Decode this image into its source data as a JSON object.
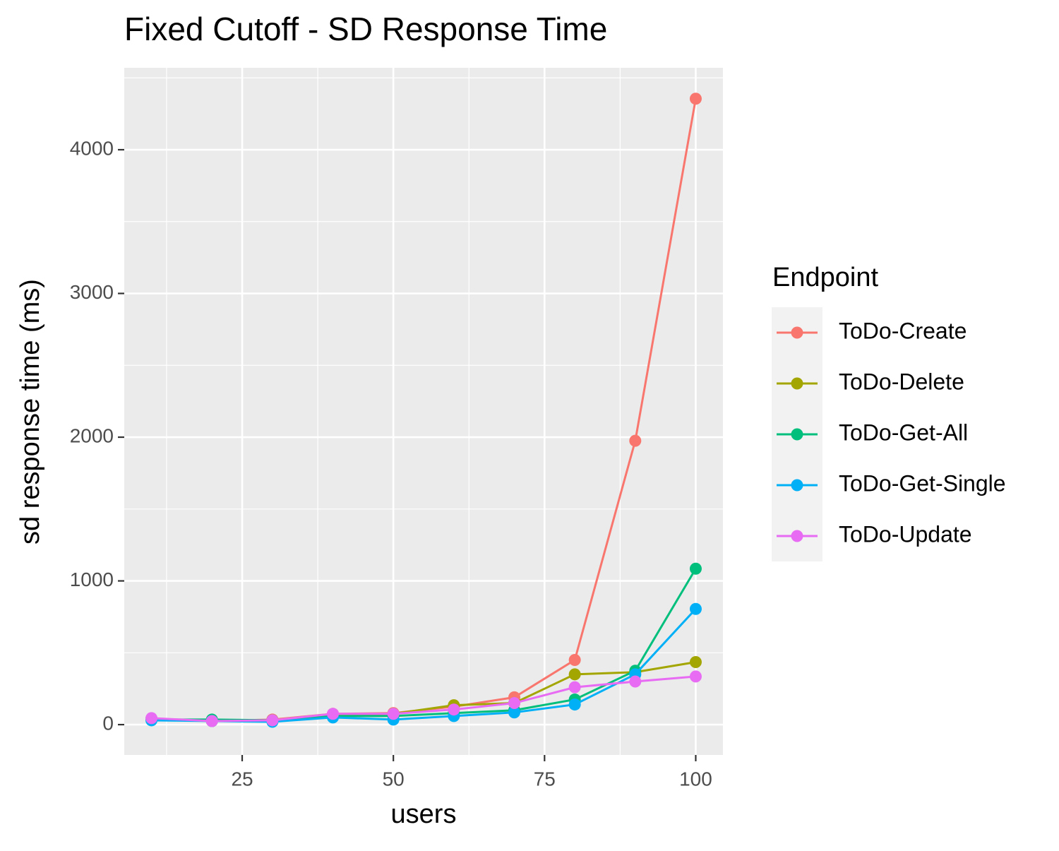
{
  "chart_data": {
    "type": "line",
    "title": "Fixed Cutoff - SD Response Time",
    "x_label": "users",
    "y_label": "sd response time (ms)",
    "x": [
      10,
      20,
      30,
      40,
      50,
      60,
      70,
      80,
      90,
      100
    ],
    "series": [
      {
        "name": "ToDo-Create",
        "color": "#F8766D",
        "values": [
          40,
          25,
          35,
          75,
          80,
          125,
          190,
          450,
          1975,
          4355
        ]
      },
      {
        "name": "ToDo-Delete",
        "color": "#A3A500",
        "values": [
          40,
          25,
          30,
          70,
          75,
          135,
          150,
          350,
          365,
          435
        ]
      },
      {
        "name": "ToDo-Get-All",
        "color": "#00BF7D",
        "values": [
          35,
          35,
          30,
          60,
          60,
          80,
          100,
          175,
          375,
          1085
        ]
      },
      {
        "name": "ToDo-Get-Single",
        "color": "#00B0F6",
        "values": [
          30,
          25,
          20,
          50,
          35,
          60,
          85,
          140,
          350,
          805
        ]
      },
      {
        "name": "ToDo-Update",
        "color": "#E76BF3",
        "values": [
          45,
          25,
          30,
          75,
          75,
          105,
          150,
          260,
          300,
          335
        ]
      }
    ],
    "legend_title": "Endpoint",
    "legend_position": "right",
    "xlim": [
      5.5,
      104.5
    ],
    "xticks": [
      25,
      50,
      75,
      100
    ],
    "ylim": [
      -211,
      4570
    ],
    "yticks": [
      0,
      1000,
      2000,
      3000,
      4000
    ],
    "grid": true
  }
}
